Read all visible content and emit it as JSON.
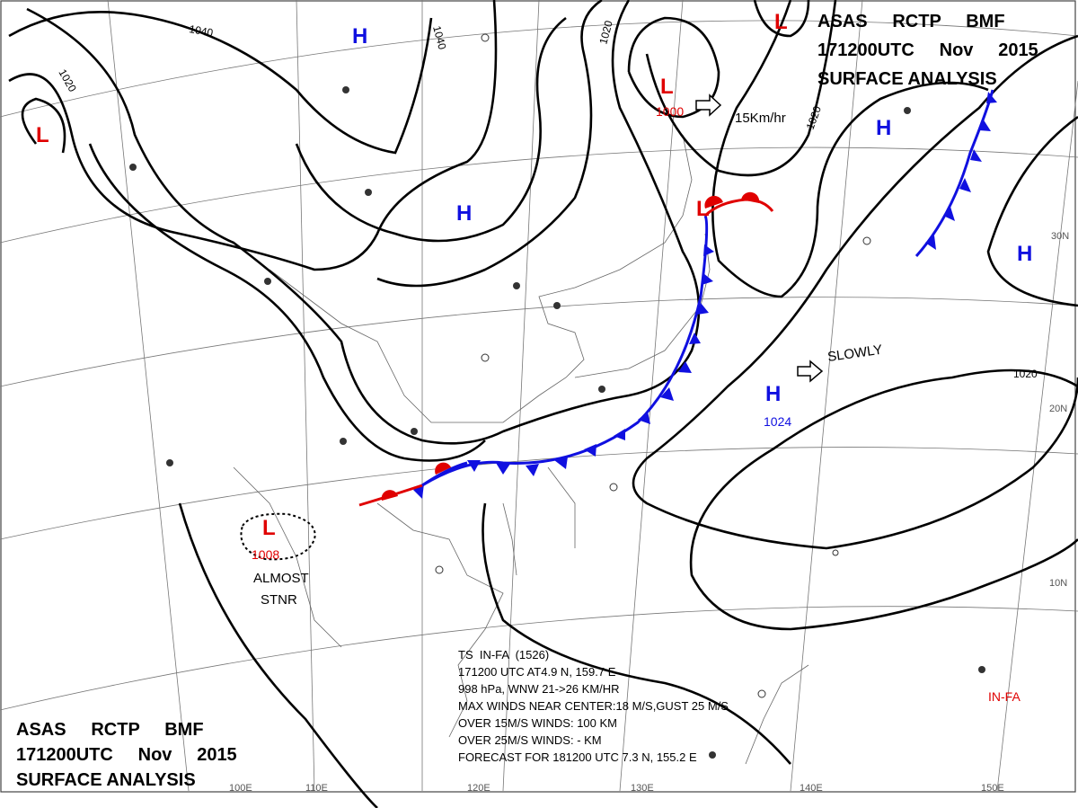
{
  "header_top_right": {
    "line1": "ASAS     RCTP     BMF",
    "line2": "171200UTC     Nov     2015",
    "line3": "SURFACE  ANALYSIS"
  },
  "header_bottom_left": {
    "line1": "ASAS     RCTP     BMF",
    "line2": "171200UTC     Nov     2015",
    "line3": "SURFACE  ANALYSIS"
  },
  "systems": {
    "high_label": "H",
    "low_label": "L",
    "high_1024_pressure": "1024",
    "low_1000_pressure": "1000",
    "low_1008_pressure": "1008"
  },
  "motion": {
    "low_1000": "15Km/hr",
    "high_1024": "SLOWLY",
    "low_1008_line1": "ALMOST",
    "low_1008_line2": "STNR"
  },
  "isobar_labels": [
    "1040",
    "1020",
    "1040",
    "1020",
    "1020",
    "1020"
  ],
  "latitudes": [
    "30N",
    "20N",
    "10N"
  ],
  "longitudes": [
    "100E",
    "110E",
    "120E",
    "130E",
    "140E",
    "150E"
  ],
  "typhoon": {
    "name": "IN-FA",
    "lines": [
      "TS  IN-FA  (1526)",
      "171200 UTC  AT4.9 N, 159.7 E",
      "998 hPa, WNW  21->26 KM/HR",
      "MAX WINDS NEAR CENTER:18 M/S,GUST 25 M/S",
      "OVER 15M/S WINDS: 100 KM",
      "OVER 25M/S WINDS: - KM",
      "FORECAST FOR 181200 UTC 7.3 N, 155.2 E"
    ]
  },
  "colors": {
    "high": "#1010e0",
    "low": "#e00000",
    "cold_front": "#1010e0",
    "warm_front": "#e00000"
  }
}
